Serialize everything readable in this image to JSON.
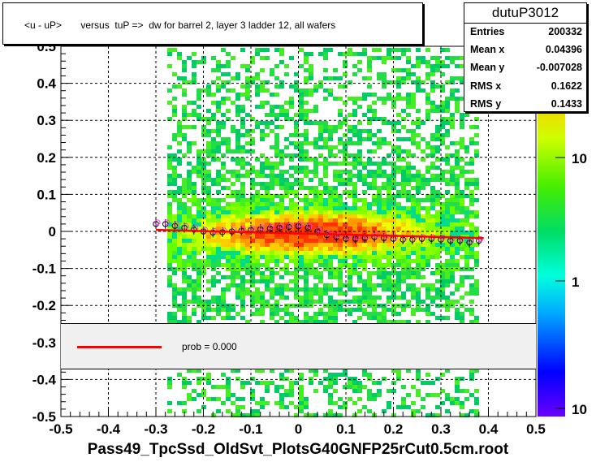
{
  "chart_data": {
    "type": "heatmap",
    "title": "<u - uP>       versus  tuP =>  dw for barrel 2, layer 3 ladder 12, all wafers",
    "xlabel": "Pass49_TpcSsd_OldSvt_PlotsG40GNFP25rCut0.5cm.root",
    "ylabel": "",
    "xlim": [
      -0.5,
      0.5
    ],
    "ylim": [
      -0.5,
      0.5
    ],
    "x_ticks": [
      "-0.5",
      "-0.4",
      "-0.3",
      "-0.2",
      "-0.1",
      "0",
      "0.1",
      "0.2",
      "0.3",
      "0.4",
      "0.5"
    ],
    "y_ticks": [
      "-0.5",
      "-0.4",
      "-0.3",
      "-0.2",
      "-0.1",
      "0",
      "0.1",
      "0.2",
      "0.3",
      "0.4",
      "0.5"
    ],
    "grid": true,
    "z_scale": "log",
    "z_ticks": [
      "10",
      "1",
      "10"
    ],
    "occupied_x_range": [
      -0.3,
      0.39
    ],
    "profile_points": {
      "x": [
        -0.3,
        -0.28,
        -0.26,
        -0.24,
        -0.22,
        -0.2,
        -0.18,
        -0.16,
        -0.14,
        -0.12,
        -0.1,
        -0.08,
        -0.06,
        -0.04,
        -0.02,
        0,
        0.02,
        0.04,
        0.06,
        0.08,
        0.1,
        0.12,
        0.14,
        0.16,
        0.18,
        0.2,
        0.22,
        0.24,
        0.26,
        0.28,
        0.3,
        0.32,
        0.34,
        0.36,
        0.38
      ],
      "y": [
        0.02,
        0.02,
        0.015,
        0.01,
        0.005,
        0.0,
        -0.003,
        -0.002,
        0.0,
        0.002,
        0.004,
        0.006,
        0.008,
        0.01,
        0.012,
        0.014,
        0.01,
        0.0,
        -0.01,
        -0.015,
        -0.02,
        -0.02,
        -0.018,
        -0.015,
        -0.018,
        -0.02,
        -0.022,
        -0.022,
        -0.02,
        -0.02,
        -0.022,
        -0.025,
        -0.025,
        -0.03,
        -0.025
      ]
    },
    "fit_line": {
      "x": [
        -0.3,
        0.39
      ],
      "y": [
        0.004,
        -0.018
      ]
    }
  },
  "legend": {
    "label": "prob = 0.000",
    "line_color": "#ff0000"
  },
  "stats": {
    "title": "dutuP3012",
    "rows": [
      {
        "key": "Entries",
        "value": "200332"
      },
      {
        "key": "Mean x",
        "value": "0.04396"
      },
      {
        "key": "Mean y",
        "value": "-0.007028"
      },
      {
        "key": "RMS x",
        "value": "0.1622"
      },
      {
        "key": "RMS y",
        "value": "0.1433"
      }
    ]
  },
  "colors": {
    "profile_black": "#000000",
    "profile_magenta": "#ff33ff",
    "fit_red": "#ff0000"
  }
}
